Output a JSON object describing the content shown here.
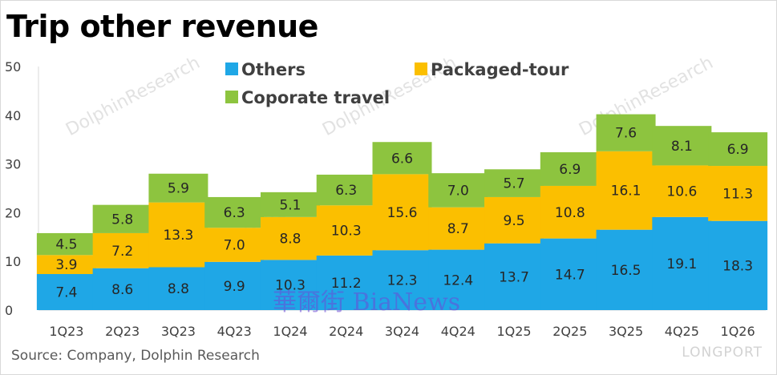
{
  "watermarks": {
    "brand": "LONGPORT",
    "research": "DolphinResearch",
    "center": "華爾街 BiaNews"
  },
  "source": "Source: Company, Dolphin Research",
  "chart_data": {
    "type": "bar",
    "stacked": true,
    "title": "Trip other revenue",
    "categories": [
      "1Q23",
      "2Q23",
      "3Q23",
      "4Q23",
      "1Q24",
      "2Q24",
      "3Q24",
      "4Q24",
      "1Q25",
      "2Q25",
      "3Q25",
      "4Q25",
      "1Q26"
    ],
    "series": [
      {
        "name": "Others",
        "color": "#1fa7e6",
        "values": [
          7.4,
          8.6,
          8.8,
          9.9,
          10.3,
          11.2,
          12.3,
          12.4,
          13.7,
          14.7,
          16.5,
          19.1,
          18.3
        ]
      },
      {
        "name": "Packaged-tour",
        "color": "#fbbf00",
        "values": [
          3.9,
          7.2,
          13.3,
          7.0,
          8.8,
          10.3,
          15.6,
          8.7,
          9.5,
          10.8,
          16.1,
          10.6,
          11.3
        ]
      },
      {
        "name": "Coporate travel",
        "color": "#8dc43f",
        "values": [
          4.5,
          5.8,
          5.9,
          6.3,
          5.1,
          6.3,
          6.6,
          7.0,
          5.7,
          6.9,
          7.6,
          8.1,
          6.9
        ]
      }
    ],
    "ylim": [
      0,
      50
    ],
    "yticks": [
      0,
      10,
      20,
      30,
      40,
      50
    ],
    "xlabel": "",
    "ylabel": "",
    "grid": false,
    "legend_position": "top"
  }
}
